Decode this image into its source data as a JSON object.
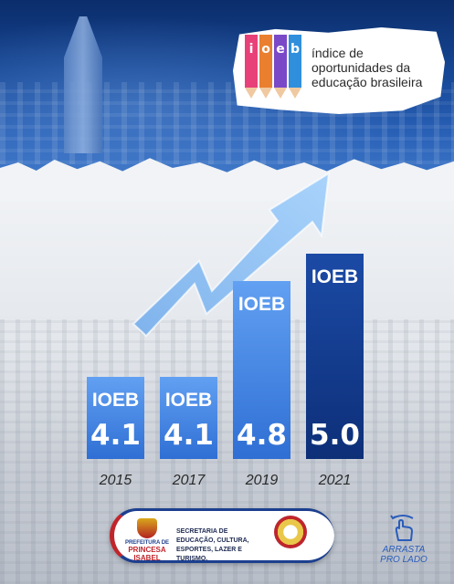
{
  "brand": {
    "logo_letters": [
      "i",
      "o",
      "e",
      "b"
    ],
    "logo_colors": [
      "#e8417a",
      "#e97f2f",
      "#7a49c7",
      "#2f8fdd"
    ],
    "tagline_lines": [
      "índice de",
      "oportunidades da",
      "educação brasileira"
    ]
  },
  "chart_data": {
    "type": "bar",
    "title": "",
    "xlabel": "",
    "ylabel": "",
    "categories": [
      "2015",
      "2017",
      "2019",
      "2021"
    ],
    "series": [
      {
        "values": [
          4.1,
          4.1,
          4.8,
          5.0
        ]
      }
    ],
    "bar_labels": [
      "IOEB",
      "IOEB",
      "IOEB",
      "IOEB"
    ],
    "value_labels": [
      "4.1",
      "4.1",
      "4.8",
      "5.0"
    ],
    "ylim": [
      3.5,
      5.1
    ],
    "grid": false,
    "legend": "none",
    "colors": {
      "bar_light": "#3f7fe0",
      "bar_light_top": "#5d98ee",
      "bar_dark": "#123a8c",
      "arrow": "#8fc0f2"
    }
  },
  "footer": {
    "city_hall": "PREFEITURA DE",
    "city_name": "PRINCESA ISABEL",
    "department_lines": [
      "SECRETARIA DE EDUCAÇÃO, CULTURA,",
      "ESPORTES, LAZER E TURISMO."
    ],
    "swipe_icon": "swipe-hand-icon",
    "swipe_lines": [
      "ARRASTA",
      "PRO LADO"
    ]
  }
}
